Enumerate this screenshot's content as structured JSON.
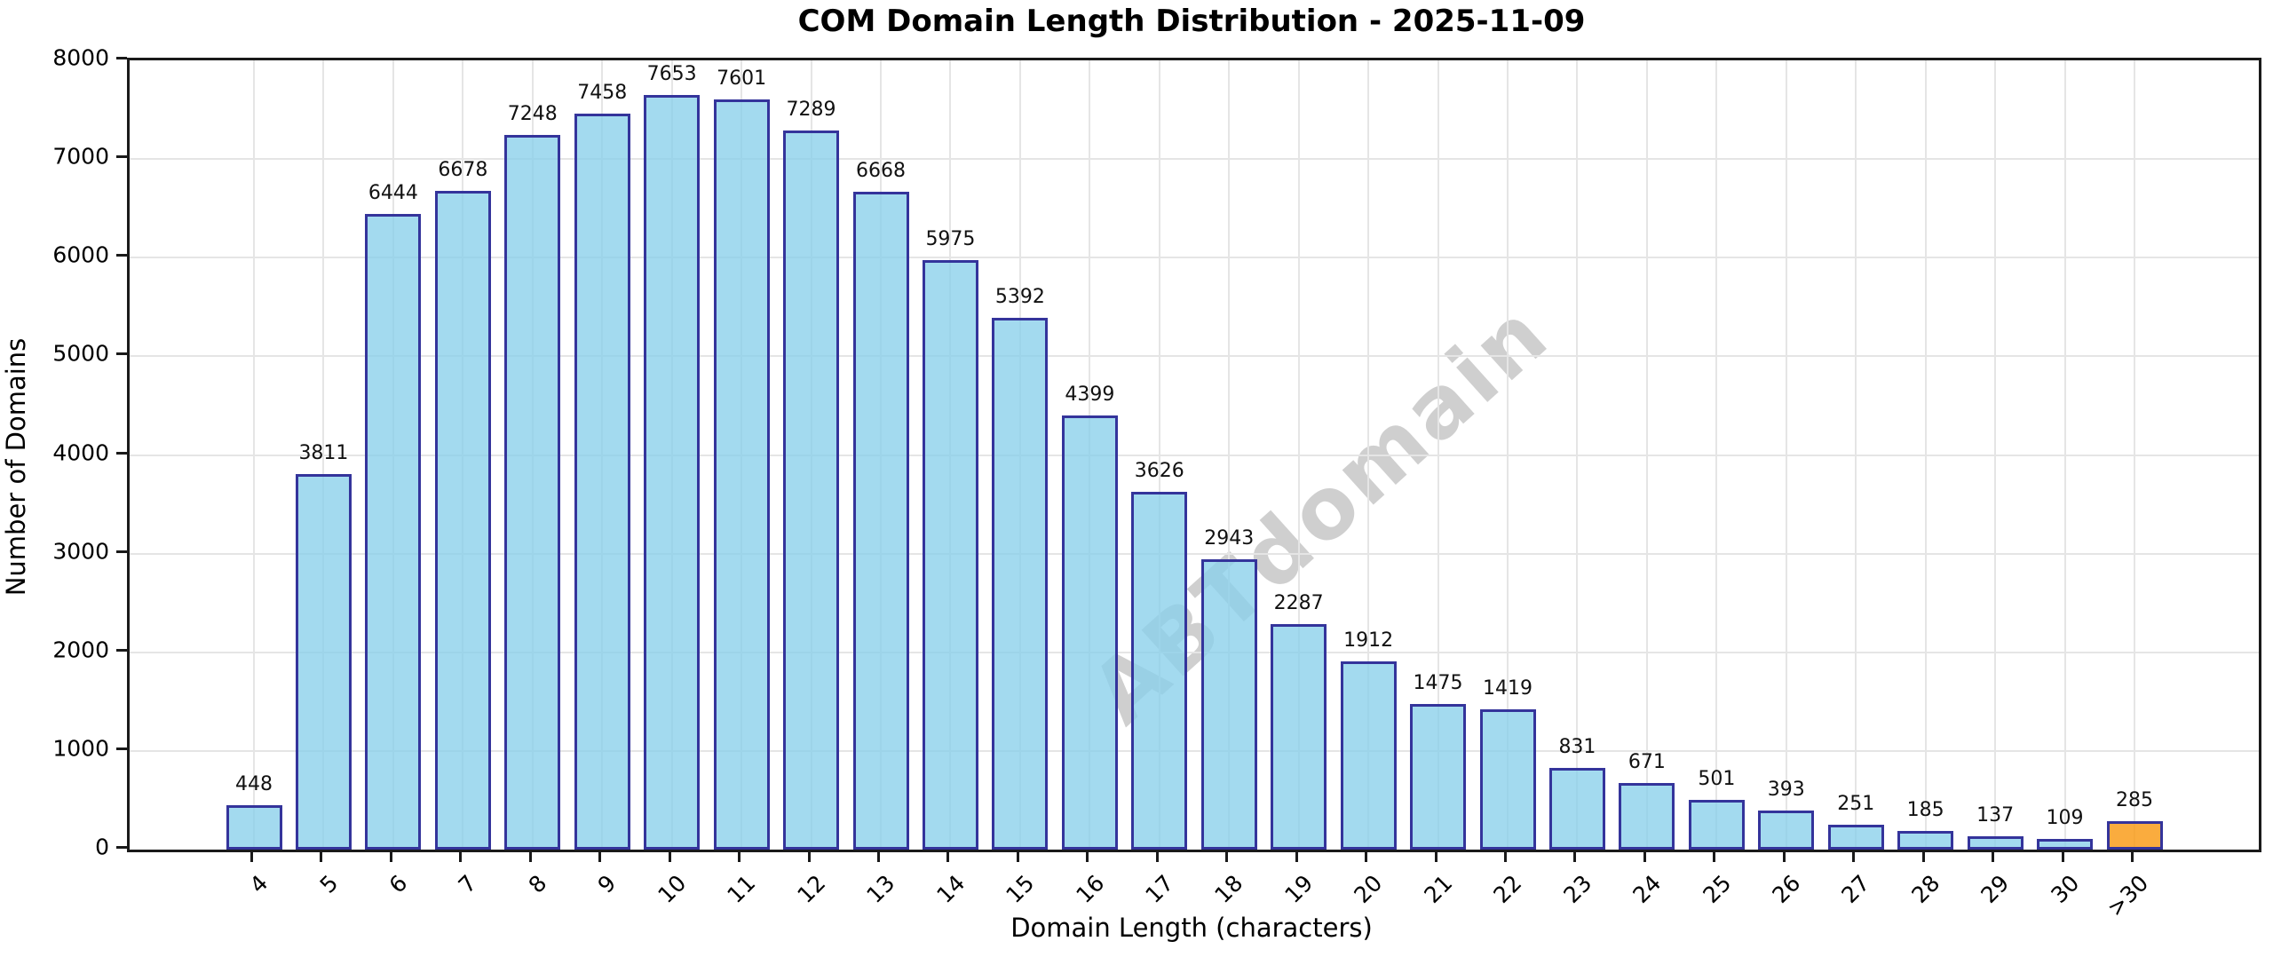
{
  "chart_data": {
    "type": "bar",
    "title": "COM Domain Length Distribution - 2025-11-09",
    "xlabel": "Domain Length (characters)",
    "ylabel": "Number of Domains",
    "categories": [
      "4",
      "5",
      "6",
      "7",
      "8",
      "9",
      "10",
      "11",
      "12",
      "13",
      "14",
      "15",
      "16",
      "17",
      "18",
      "19",
      "20",
      "21",
      "22",
      "23",
      "24",
      "25",
      "26",
      "27",
      "28",
      "29",
      "30",
      ">30"
    ],
    "values": [
      448,
      3811,
      6444,
      6678,
      7248,
      7458,
      7653,
      7601,
      7289,
      6668,
      5975,
      5392,
      4399,
      3626,
      2943,
      2287,
      1912,
      1475,
      1419,
      831,
      671,
      501,
      393,
      251,
      185,
      137,
      109,
      285
    ],
    "ylim": [
      0,
      8000
    ],
    "ytick_step": 1000,
    "grid": true,
    "legend": "none",
    "watermark": "ABTdomain",
    "colors": {
      "bar_fill": "rgba(137,207,235,0.78)",
      "bar_edge": "#34349B",
      "highlight_fill": "rgba(249,157,28,0.85)",
      "highlight_index": 27,
      "grid": "#e5e5e5",
      "spine": "#1a1a1a"
    }
  }
}
